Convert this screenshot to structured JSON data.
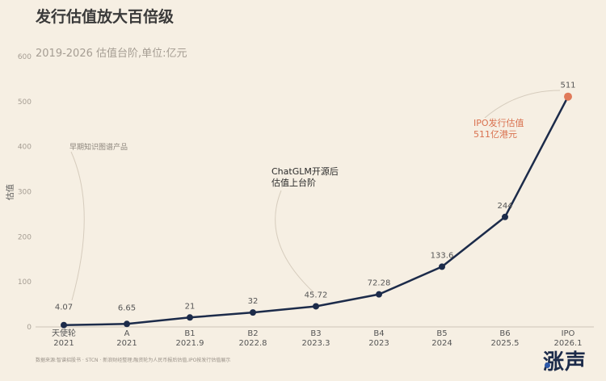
{
  "chart_data": {
    "type": "line",
    "title": "发行估值放大百倍级",
    "subtitle": "2019-2026 估值台阶,单位:亿元",
    "ylabel": "估值",
    "xlabel": "",
    "ylim": [
      0,
      600
    ],
    "yticks": [
      0,
      100,
      200,
      300,
      400,
      500,
      600
    ],
    "grid": false,
    "categories": [
      {
        "round": "天使轮",
        "date": "2021"
      },
      {
        "round": "A",
        "date": "2021"
      },
      {
        "round": "B1",
        "date": "2021.9"
      },
      {
        "round": "B2",
        "date": "2022.8"
      },
      {
        "round": "B3",
        "date": "2023.3"
      },
      {
        "round": "B4",
        "date": "2023"
      },
      {
        "round": "B5",
        "date": "2024"
      },
      {
        "round": "B6",
        "date": "2025.5"
      },
      {
        "round": "IPO",
        "date": "2026.1"
      }
    ],
    "values": [
      4.07,
      6.65,
      21,
      32,
      45.72,
      72.28,
      133.6,
      244,
      511
    ],
    "value_labels": [
      "4.07",
      "6.65",
      "21",
      "32",
      "45.72",
      "72.28",
      "133.6",
      "244",
      "511"
    ],
    "annotations": [
      {
        "text": [
          "早期知识图谱产品"
        ],
        "style": "small"
      },
      {
        "text": [
          "ChatGLM开源后",
          "估值上台阶"
        ],
        "style": "normal"
      },
      {
        "text": [
          "IPO发行估值",
          "511亿港元"
        ],
        "style": "ipo"
      }
    ],
    "colors": {
      "line": "#1c2b4a",
      "point": "#1c2b4a",
      "highlight": "#e07a5a"
    }
  },
  "footer": "数据来源:智谱招股书 · STCN · 新浪财经整理;融资轮为人民币报后估值,IPO按发行估值展示",
  "brand": "涨声"
}
